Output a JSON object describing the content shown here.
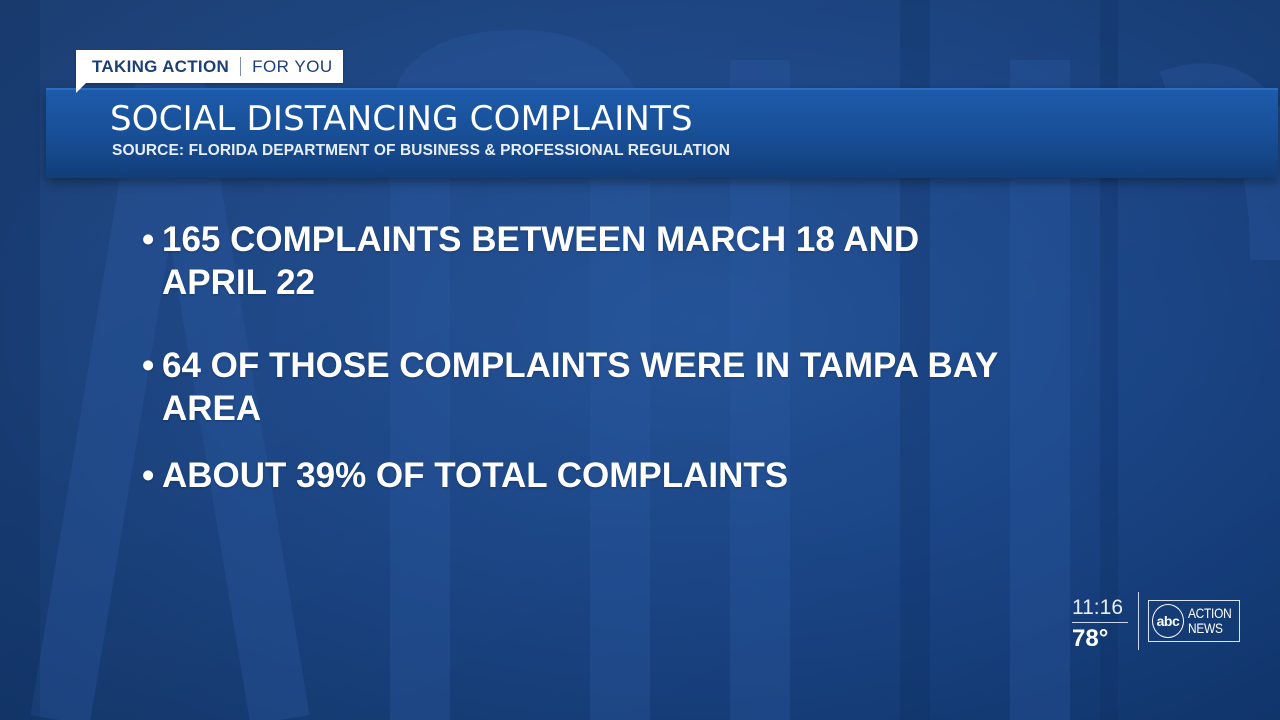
{
  "tag": {
    "primary": "TAKING ACTION",
    "secondary": "FOR YOU"
  },
  "banner": {
    "title": "SOCIAL DISTANCING COMPLAINTS",
    "source": "SOURCE: FLORIDA DEPARTMENT OF BUSINESS & PROFESSIONAL REGULATION"
  },
  "bullets": [
    {
      "marker": "•",
      "text": "165 COMPLAINTS BETWEEN MARCH 18 AND APRIL 22"
    },
    {
      "marker": "•",
      "text": "64 OF THOSE COMPLAINTS WERE IN TAMPA BAY AREA"
    },
    {
      "marker": "•",
      "text": "ABOUT 39% OF TOTAL COMPLAINTS"
    }
  ],
  "bug": {
    "time": "11:16",
    "temperature": "78°",
    "logo": {
      "circle_text": "abc",
      "word_line1": "ACTION",
      "word_line2": "NEWS"
    }
  },
  "colors": {
    "background": "#174283",
    "banner": "#1a55a0",
    "tag_background": "#ffffff",
    "tag_text": "#1d3f78",
    "text": "#ffffff"
  }
}
